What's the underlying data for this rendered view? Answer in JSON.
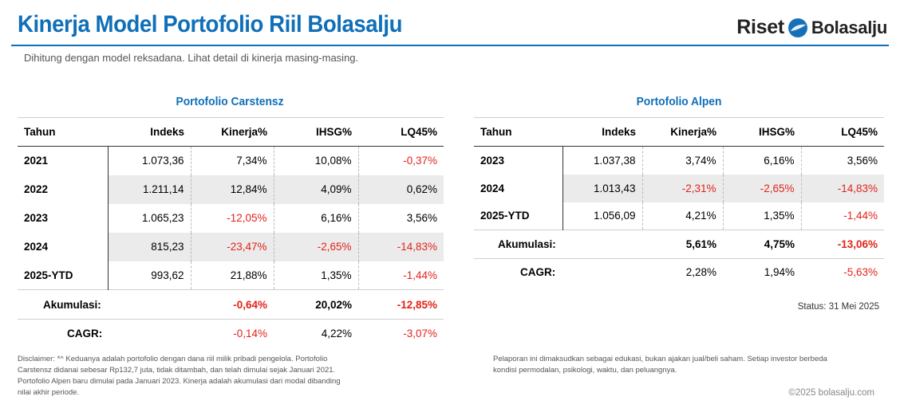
{
  "header": {
    "title": "Kinerja Model Portofolio Riil Bolasalju",
    "subtitle": "Dihitung dengan model reksadana. Lihat detail di kinerja masing-masing.",
    "logo_word1": "Riset",
    "logo_word2": "Bolasalju"
  },
  "columns": [
    "Tahun",
    "Indeks",
    "Kinerja%",
    "IHSG%",
    "LQ45%"
  ],
  "carstensz": {
    "title": "Portofolio Carstensz",
    "rows": [
      {
        "year": "2021",
        "indeks": "1.073,36",
        "kinerja": "7,34%",
        "ihsg": "10,08%",
        "lq45": "-0,37%"
      },
      {
        "year": "2022",
        "indeks": "1.211,14",
        "kinerja": "12,84%",
        "ihsg": "4,09%",
        "lq45": "0,62%"
      },
      {
        "year": "2023",
        "indeks": "1.065,23",
        "kinerja": "-12,05%",
        "ihsg": "6,16%",
        "lq45": "3,56%"
      },
      {
        "year": "2024",
        "indeks": "815,23",
        "kinerja": "-23,47%",
        "ihsg": "-2,65%",
        "lq45": "-14,83%"
      },
      {
        "year": "2025-YTD",
        "indeks": "993,62",
        "kinerja": "21,88%",
        "ihsg": "1,35%",
        "lq45": "-1,44%"
      }
    ],
    "akumulasi": {
      "label": "Akumulasi:",
      "kinerja": "-0,64%",
      "ihsg": "20,02%",
      "lq45": "-12,85%"
    },
    "cagr": {
      "label": "CAGR:",
      "kinerja": "-0,14%",
      "ihsg": "4,22%",
      "lq45": "-3,07%"
    }
  },
  "alpen": {
    "title": "Portofolio Alpen",
    "rows": [
      {
        "year": "2023",
        "indeks": "1.037,38",
        "kinerja": "3,74%",
        "ihsg": "6,16%",
        "lq45": "3,56%"
      },
      {
        "year": "2024",
        "indeks": "1.013,43",
        "kinerja": "-2,31%",
        "ihsg": "-2,65%",
        "lq45": "-14,83%"
      },
      {
        "year": "2025-YTD",
        "indeks": "1.056,09",
        "kinerja": "4,21%",
        "ihsg": "1,35%",
        "lq45": "-1,44%"
      }
    ],
    "akumulasi": {
      "label": "Akumulasi:",
      "kinerja": "5,61%",
      "ihsg": "4,75%",
      "lq45": "-13,06%"
    },
    "cagr": {
      "label": "CAGR:",
      "kinerja": "2,28%",
      "ihsg": "1,94%",
      "lq45": "-5,63%"
    }
  },
  "status": "Status: 31 Mei 2025",
  "disclaimer_left": [
    "Disclaimer: *^ Keduanya adalah portofolio dengan dana riil milik pribadi pengelola. Portofolio",
    "Carstensz didanai sebesar Rp132,7 juta, tidak ditambah, dan telah dimulai sejak Januari 2021.",
    "Portofolio Alpen baru dimulai pada Januari 2023. Kinerja adalah akumulasi dari modal dibanding",
    "nilai akhir periode."
  ],
  "disclaimer_right": [
    "Pelaporan ini dimaksudkan sebagai edukasi, bukan ajakan jual/beli saham. Setiap investor berbeda",
    "kondisi permodalan, psikologi, waktu, dan peluangnya."
  ],
  "copyright": "©2025 bolasalju.com",
  "colors": {
    "accent": "#0f6fb8",
    "negative": "#e2231a",
    "stripe": "#ebebeb"
  }
}
